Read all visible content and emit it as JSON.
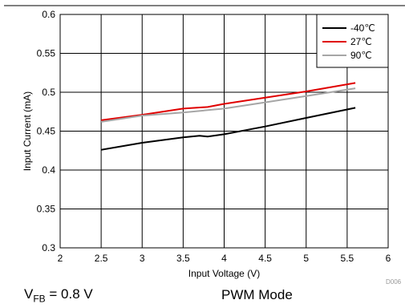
{
  "chart_data": {
    "type": "line",
    "xlabel": "Input Voltage (V)",
    "ylabel": "Input Current (mA)",
    "xlim": [
      2,
      6
    ],
    "ylim": [
      0.3,
      0.6
    ],
    "x_ticks": [
      "2",
      "2.5",
      "3",
      "3.5",
      "4",
      "4.5",
      "5",
      "5.5",
      "6"
    ],
    "y_ticks": [
      "0.3",
      "0.35",
      "0.4",
      "0.45",
      "0.5",
      "0.55",
      "0.6"
    ],
    "grid": true,
    "legend_position": "top-right",
    "series": [
      {
        "name": "-40℃",
        "color": "#000000",
        "x": [
          2.5,
          3.0,
          3.5,
          3.7,
          3.8,
          4.0,
          4.5,
          5.0,
          5.6
        ],
        "y": [
          0.426,
          0.435,
          0.442,
          0.444,
          0.443,
          0.446,
          0.456,
          0.467,
          0.48
        ]
      },
      {
        "name": "27℃",
        "color": "#e00000",
        "x": [
          2.5,
          3.0,
          3.5,
          3.8,
          4.0,
          4.5,
          5.0,
          5.6
        ],
        "y": [
          0.464,
          0.471,
          0.479,
          0.481,
          0.485,
          0.493,
          0.501,
          0.512
        ]
      },
      {
        "name": "90℃",
        "color": "#a6a6a6",
        "x": [
          2.5,
          3.0,
          3.5,
          4.0,
          4.5,
          5.0,
          5.6
        ],
        "y": [
          0.462,
          0.47,
          0.474,
          0.479,
          0.487,
          0.495,
          0.505
        ]
      }
    ]
  },
  "figure_id": "D006",
  "caption": {
    "vfb_base": "V",
    "vfb_sub": "FB",
    "vfb_value": " = 0.8 V",
    "mode": "PWM Mode"
  }
}
